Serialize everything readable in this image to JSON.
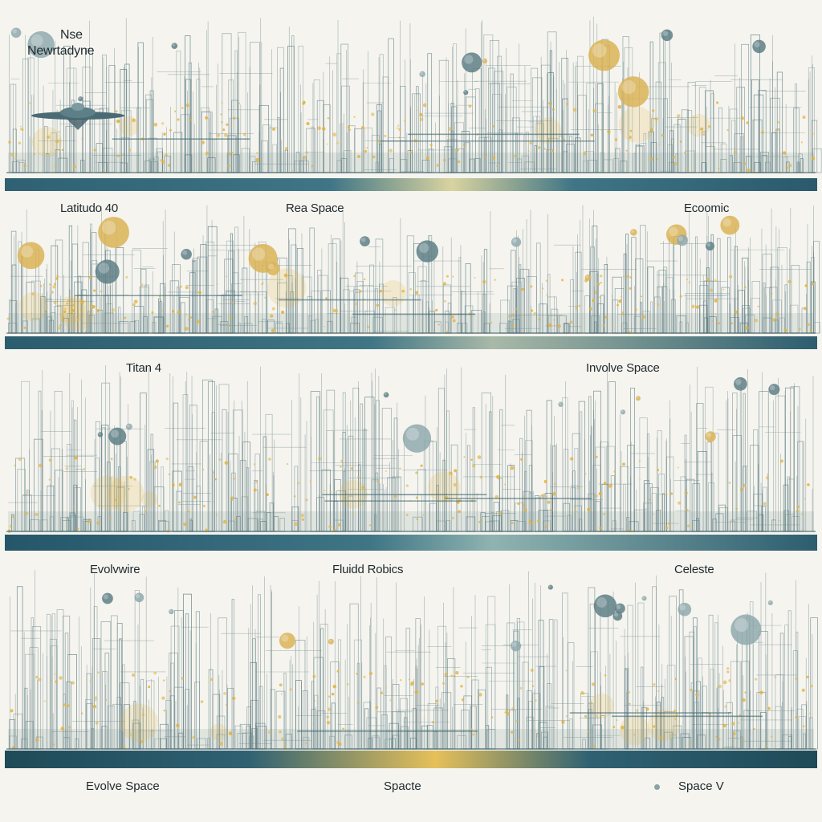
{
  "labels": {
    "top_title_line1": "Nse",
    "top_title_line2": "Newrtadyne",
    "row2_left": "Latitudo 40",
    "row2_mid": "Rea Space",
    "row2_right": "Ecoomic",
    "row3_left": "Titan 4",
    "row3_right": "Involve Space",
    "row4_left": "Evolvwire",
    "row4_mid": "Fluidd Robics",
    "row4_right": "Celeste",
    "footer_left": "Evolve Space",
    "footer_mid": "Spacte",
    "footer_right": "Space V"
  },
  "colors": {
    "paper": "#f5f4ee",
    "teal": "#3f6e7a",
    "dark_teal": "#1f4a58",
    "gold": "#e3b23c",
    "ink": "#1f2a30"
  },
  "icons": {
    "ufo": "flying-saucer-icon",
    "planet": "planet-icon"
  }
}
